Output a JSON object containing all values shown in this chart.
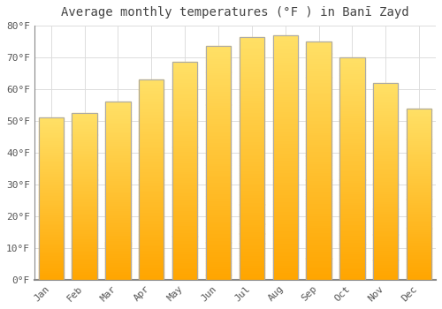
{
  "title": "Average monthly temperatures (°F ) in Banī Zayd",
  "months": [
    "Jan",
    "Feb",
    "Mar",
    "Apr",
    "May",
    "Jun",
    "Jul",
    "Aug",
    "Sep",
    "Oct",
    "Nov",
    "Dec"
  ],
  "values": [
    51,
    52.5,
    56,
    63,
    68.5,
    73.5,
    76.5,
    77,
    75,
    70,
    62,
    54
  ],
  "bar_color": "#FFA500",
  "bar_color_light": "#FFD700",
  "background_color": "#FFFFFF",
  "ylim": [
    0,
    80
  ],
  "yticks": [
    0,
    10,
    20,
    30,
    40,
    50,
    60,
    70,
    80
  ],
  "ytick_labels": [
    "0°F",
    "10°F",
    "20°F",
    "30°F",
    "40°F",
    "50°F",
    "60°F",
    "70°F",
    "80°F"
  ],
  "title_fontsize": 10,
  "tick_fontsize": 8,
  "grid_color": "#DDDDDD",
  "bar_edge_color": "#AAAAAA"
}
